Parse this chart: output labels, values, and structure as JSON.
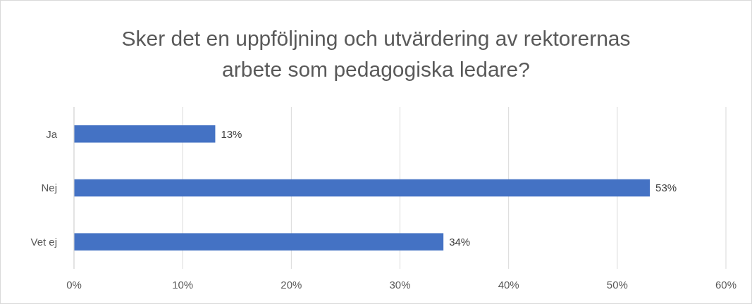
{
  "chart_data": {
    "type": "bar",
    "orientation": "horizontal",
    "title": "Sker det en uppföljning och utvärdering av rektorernas arbete som pedagogiska ledare?",
    "categories": [
      "Ja",
      "Nej",
      "Vet ej"
    ],
    "values": [
      13,
      53,
      34
    ],
    "value_labels": [
      "13%",
      "53%",
      "34%"
    ],
    "color": "#4472c4",
    "xlim": [
      0,
      60
    ],
    "xticks": [
      {
        "value": 0,
        "label": "0%"
      },
      {
        "value": 10,
        "label": "10%"
      },
      {
        "value": 20,
        "label": "20%"
      },
      {
        "value": 30,
        "label": "30%"
      },
      {
        "value": 40,
        "label": "40%"
      },
      {
        "value": 50,
        "label": "50%"
      },
      {
        "value": 60,
        "label": "60%"
      }
    ],
    "grid": "x"
  }
}
